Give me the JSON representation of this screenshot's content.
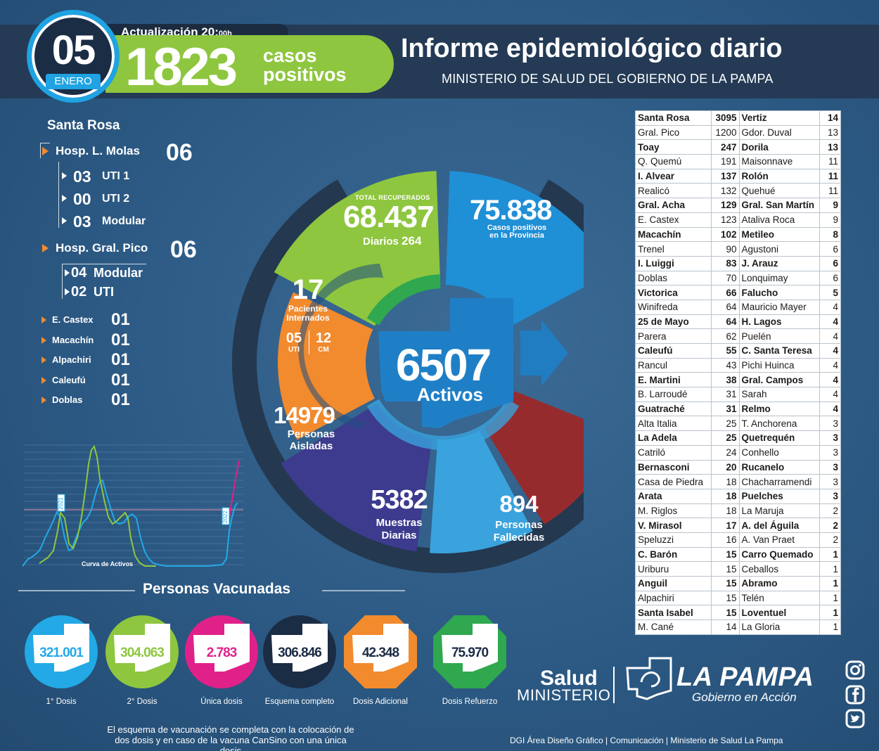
{
  "header": {
    "day": "05",
    "month": "ENERO",
    "update_label": "Actualización 20:",
    "update_suffix": "00h",
    "cases": "1823",
    "cases_label_1": "casos",
    "cases_label_2": "positivos",
    "title": "Informe epidemiológico diario",
    "subtitle": "MINISTERIO DE SALUD DEL GOBIERNO DE LA PAMPA"
  },
  "hospitals": {
    "city": "Santa Rosa",
    "molas": {
      "label": "Hosp. L. Molas",
      "count": "06",
      "sub": [
        {
          "num": "03",
          "label": "UTI 1"
        },
        {
          "num": "00",
          "label": "UTI 2"
        },
        {
          "num": "03",
          "label": "Modular"
        }
      ]
    },
    "pico": {
      "label": "Hosp. Gral. Pico",
      "count": "06",
      "sub": [
        {
          "num": "04",
          "label": "Modular"
        },
        {
          "num": "02",
          "label": "UTI"
        }
      ]
    },
    "others": [
      {
        "label": "E. Castex",
        "count": "01"
      },
      {
        "label": "Macachín",
        "count": "01"
      },
      {
        "label": "Alpachiri",
        "count": "01"
      },
      {
        "label": "Caleufú",
        "count": "01"
      },
      {
        "label": "Doblas",
        "count": "01"
      }
    ]
  },
  "curve": {
    "label": "Curva de Activos",
    "peak_label_1": "2021",
    "peak_label_2": "2022"
  },
  "donut": {
    "recuperados_label": "TOTAL RECUPERADOS",
    "recuperados": "68.437",
    "diarios_label": "Diarios",
    "diarios": "264",
    "positivos": "75.838",
    "positivos_label_1": "Casos positivos",
    "positivos_label_2": "en la Provincia",
    "internados": "17",
    "internados_label_1": "Pacientes",
    "internados_label_2": "Internados",
    "uti": "05",
    "uti_label": "UTI",
    "cm": "12",
    "cm_label": "CM",
    "activos": "6507",
    "activos_label": "Activos",
    "aisladas": "14979",
    "aisladas_label_1": "Personas",
    "aisladas_label_2": "Aisladas",
    "muestras": "5382",
    "muestras_label_1": "Muestras",
    "muestras_label_2": "Diarias",
    "fallecidas": "894",
    "fallecidas_label_1": "Personas",
    "fallecidas_label_2": "Fallecidas"
  },
  "localities": [
    {
      "a": "Santa Rosa",
      "an": "3095",
      "b": "Vertiz",
      "bn": "14",
      "bold": true
    },
    {
      "a": "Gral. Pico",
      "an": "1200",
      "b": "Gdor. Duval",
      "bn": "13",
      "bold": false
    },
    {
      "a": "Toay",
      "an": "247",
      "b": "Dorila",
      "bn": "13",
      "bold": true
    },
    {
      "a": "Q. Quemú",
      "an": "191",
      "b": "Maisonnave",
      "bn": "11",
      "bold": false
    },
    {
      "a": "I. Alvear",
      "an": "137",
      "b": "Rolón",
      "bn": "11",
      "bold": true
    },
    {
      "a": "Realicó",
      "an": "132",
      "b": "Quehué",
      "bn": "11",
      "bold": false
    },
    {
      "a": "Gral. Acha",
      "an": "129",
      "b": "Gral. San Martín",
      "bn": "9",
      "bold": true
    },
    {
      "a": "E. Castex",
      "an": "123",
      "b": "Ataliva Roca",
      "bn": "9",
      "bold": false
    },
    {
      "a": "Macachín",
      "an": "102",
      "b": "Metileo",
      "bn": "8",
      "bold": true
    },
    {
      "a": "Trenel",
      "an": "90",
      "b": "Agustoni",
      "bn": "6",
      "bold": false
    },
    {
      "a": "I. Luiggi",
      "an": "83",
      "b": "J. Arauz",
      "bn": "6",
      "bold": true
    },
    {
      "a": "Doblas",
      "an": "70",
      "b": "Lonquimay",
      "bn": "6",
      "bold": false
    },
    {
      "a": "Victorica",
      "an": "66",
      "b": "Falucho",
      "bn": "5",
      "bold": true
    },
    {
      "a": "Winifreda",
      "an": "64",
      "b": "Mauricio Mayer",
      "bn": "4",
      "bold": false
    },
    {
      "a": "25 de Mayo",
      "an": "64",
      "b": "H. Lagos",
      "bn": "4",
      "bold": true
    },
    {
      "a": "Parera",
      "an": "62",
      "b": "Puelén",
      "bn": "4",
      "bold": false
    },
    {
      "a": "Caleufú",
      "an": "55",
      "b": "C. Santa Teresa",
      "bn": "4",
      "bold": true
    },
    {
      "a": "Rancul",
      "an": "43",
      "b": "Pichi Huinca",
      "bn": "4",
      "bold": false
    },
    {
      "a": "E. Martini",
      "an": "38",
      "b": "Gral. Campos",
      "bn": "4",
      "bold": true
    },
    {
      "a": "B. Larroudé",
      "an": "31",
      "b": "Sarah",
      "bn": "4",
      "bold": false
    },
    {
      "a": "Guatraché",
      "an": "31",
      "b": "Relmo",
      "bn": "4",
      "bold": true
    },
    {
      "a": "Alta Italia",
      "an": "25",
      "b": "T. Anchorena",
      "bn": "3",
      "bold": false
    },
    {
      "a": "La Adela",
      "an": "25",
      "b": "Quetrequén",
      "bn": "3",
      "bold": true
    },
    {
      "a": "Catriló",
      "an": "24",
      "b": "Conhello",
      "bn": "3",
      "bold": false
    },
    {
      "a": "Bernasconi",
      "an": "20",
      "b": "Rucanelo",
      "bn": "3",
      "bold": true
    },
    {
      "a": "Casa de Piedra",
      "an": "18",
      "b": "Chacharramendi",
      "bn": "3",
      "bold": false
    },
    {
      "a": "Arata",
      "an": "18",
      "b": "Puelches",
      "bn": "3",
      "bold": true
    },
    {
      "a": "M. Riglos",
      "an": "18",
      "b": "La Maruja",
      "bn": "2",
      "bold": false
    },
    {
      "a": "V. Mirasol",
      "an": "17",
      "b": "A. del Águila",
      "bn": "2",
      "bold": true
    },
    {
      "a": "Speluzzi",
      "an": "16",
      "b": "A. Van Praet",
      "bn": "2",
      "bold": false
    },
    {
      "a": "C. Barón",
      "an": "15",
      "b": "Carro Quemado",
      "bn": "1",
      "bold": true
    },
    {
      "a": "Uriburu",
      "an": "15",
      "b": "Ceballos",
      "bn": "1",
      "bold": false
    },
    {
      "a": "Anguil",
      "an": "15",
      "b": "Abramo",
      "bn": "1",
      "bold": true
    },
    {
      "a": "Alpachiri",
      "an": "15",
      "b": "Telén",
      "bn": "1",
      "bold": false
    },
    {
      "a": "Santa Isabel",
      "an": "15",
      "b": "Loventuel",
      "bn": "1",
      "bold": true
    },
    {
      "a": "M. Cané",
      "an": "14",
      "b": "La Gloria",
      "bn": "1",
      "bold": false
    }
  ],
  "vaccines": {
    "title": "Personas Vacunadas",
    "items": [
      {
        "value": "321.001",
        "label": "1° Dosis",
        "color": "#22a9e6"
      },
      {
        "value": "304.063",
        "label": "2° Dosis",
        "color": "#8ec63f"
      },
      {
        "value": "2.783",
        "label": "Única dosis",
        "color": "#e0218a"
      },
      {
        "value": "306.846",
        "label": "Esquema completo",
        "color": "#1b2c45"
      },
      {
        "value": "42.348",
        "label": "Dosis Adicional",
        "color": "#f28a2e"
      },
      {
        "value": "75.970",
        "label": "Dosis Refuerzo",
        "color": "#2fa84f"
      }
    ],
    "note": "El esquema de vacunación se completa con la colocación de dos dosis y en caso de la vacuna CanSino con una única dosis"
  },
  "footer": "DGI Área Diseño Gráfico  | Comunicación | Ministerio de Salud La Pampa",
  "logo": {
    "salud": "Salud",
    "ministerio": "MINISTERIO",
    "la_pampa": "LA PAMPA",
    "gobierno": "Gobierno en Acción"
  },
  "colors": {
    "recuperados": "#8ec63f",
    "positivos": "#1f8fd6",
    "internados": "#f28a2e",
    "aisladas": "#3d3b8e",
    "muestras": "#3aa3dd",
    "fallecidas": "#962b2e",
    "center": "#1f7fc6",
    "ring": "#24384f"
  }
}
